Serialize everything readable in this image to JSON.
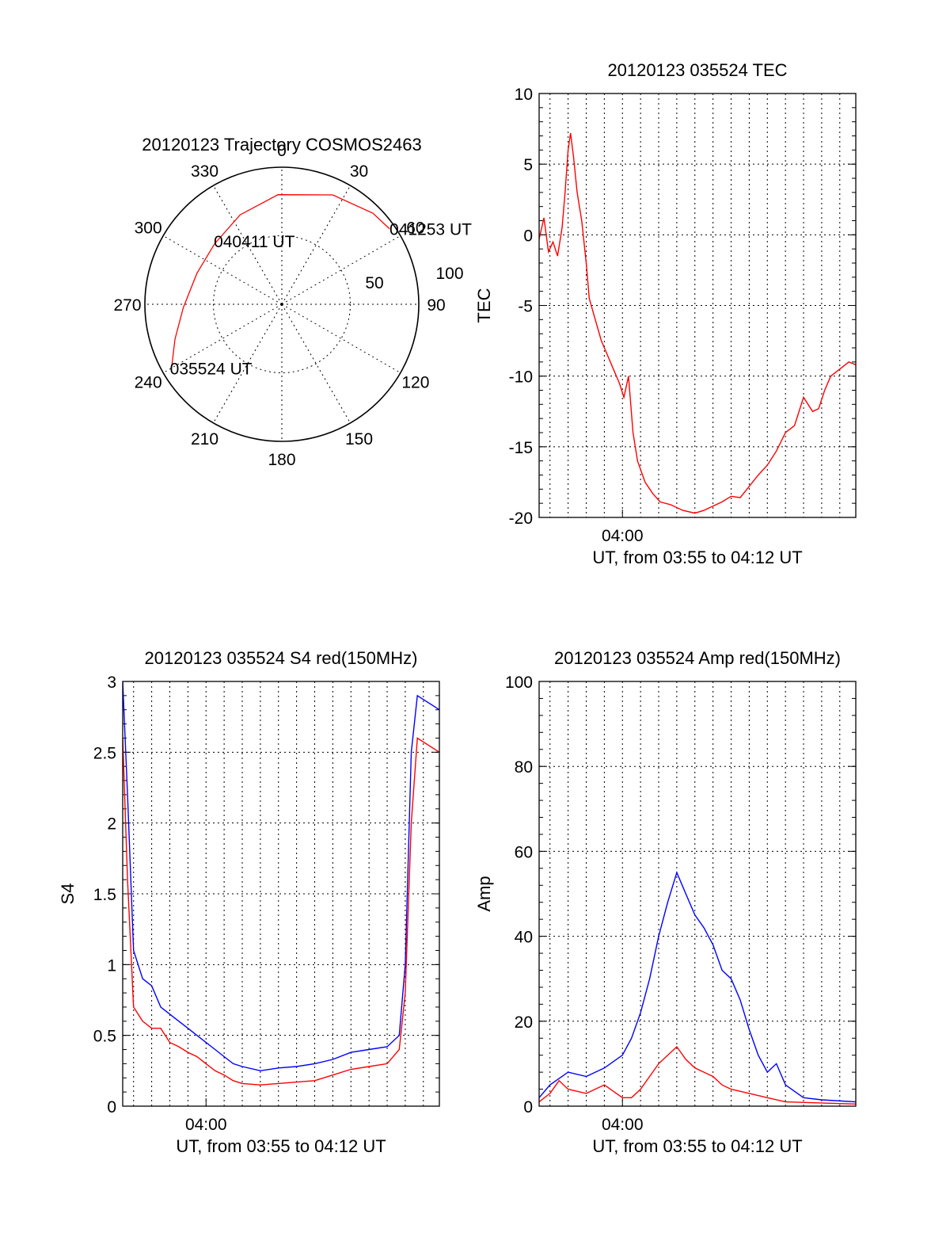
{
  "colors": {
    "red": "#ff0000",
    "blue": "#0000ff",
    "axis": "#000000"
  },
  "chart_data": [
    {
      "id": "polar",
      "type": "polar",
      "title": "20120123 Trajectory COSMOS2463",
      "azimuth_labels": [
        "0",
        "30",
        "60",
        "90",
        "120",
        "150",
        "180",
        "210",
        "240",
        "270",
        "300",
        "330"
      ],
      "radial_labels": [
        "50",
        "100"
      ],
      "rlim": [
        0,
        100
      ],
      "series": [
        {
          "color": "red",
          "points": [
            {
              "az": 240,
              "r": 93
            },
            {
              "az": 252,
              "r": 82
            },
            {
              "az": 268,
              "r": 72
            },
            {
              "az": 290,
              "r": 66
            },
            {
              "az": 312,
              "r": 66
            },
            {
              "az": 335,
              "r": 72
            },
            {
              "az": 358,
              "r": 80
            },
            {
              "az": 25,
              "r": 88
            },
            {
              "az": 45,
              "r": 94
            },
            {
              "az": 55,
              "r": 96
            }
          ]
        }
      ],
      "annotations": [
        {
          "text": "041253 UT",
          "az": 55,
          "r": 96
        },
        {
          "text": "040411 UT",
          "az": 338,
          "r": 40
        },
        {
          "text": "035524 UT",
          "az": 240,
          "r": 93
        }
      ]
    },
    {
      "id": "tec",
      "type": "line",
      "title": "20120123 035524 TEC",
      "xlabel": "UT, from 03:55 to 04:12 UT",
      "ylabel": "TEC",
      "xlim": [
        "03:55:24",
        "04:12:53"
      ],
      "x_ticks": [
        "04:00"
      ],
      "ylim": [
        -20,
        10
      ],
      "y_ticks": [
        -20,
        -15,
        -10,
        -5,
        0,
        5,
        10
      ],
      "grid": true,
      "series": [
        {
          "color": "red",
          "points": [
            [
              "03:55:24",
              -0.3
            ],
            [
              "03:55:40",
              1.2
            ],
            [
              "03:55:55",
              -1.2
            ],
            [
              "03:56:10",
              -0.5
            ],
            [
              "03:56:25",
              -1.5
            ],
            [
              "03:56:40",
              0.5
            ],
            [
              "03:56:50",
              3.0
            ],
            [
              "03:57:00",
              6.0
            ],
            [
              "03:57:08",
              7.2
            ],
            [
              "03:57:18",
              5.5
            ],
            [
              "03:57:30",
              3.0
            ],
            [
              "03:57:45",
              1.0
            ],
            [
              "03:58:00",
              -2.0
            ],
            [
              "03:58:10",
              -4.5
            ],
            [
              "03:58:30",
              -6.0
            ],
            [
              "03:58:50",
              -7.5
            ],
            [
              "03:59:10",
              -8.5
            ],
            [
              "03:59:30",
              -9.5
            ],
            [
              "03:59:50",
              -10.5
            ],
            [
              "04:00:05",
              -11.5
            ],
            [
              "04:00:20",
              -10.0
            ],
            [
              "04:00:35",
              -14.0
            ],
            [
              "04:00:50",
              -16.0
            ],
            [
              "04:01:15",
              -17.5
            ],
            [
              "04:01:40",
              -18.3
            ],
            [
              "04:02:05",
              -18.9
            ],
            [
              "04:02:40",
              -19.1
            ],
            [
              "04:03:20",
              -19.5
            ],
            [
              "04:04:00",
              -19.7
            ],
            [
              "04:04:30",
              -19.5
            ],
            [
              "04:05:00",
              -19.2
            ],
            [
              "04:05:30",
              -18.9
            ],
            [
              "04:06:00",
              -18.5
            ],
            [
              "04:06:30",
              -18.6
            ],
            [
              "04:07:00",
              -17.8
            ],
            [
              "04:07:30",
              -17.0
            ],
            [
              "04:08:00",
              -16.3
            ],
            [
              "04:08:30",
              -15.3
            ],
            [
              "04:09:00",
              -14.0
            ],
            [
              "04:09:30",
              -13.5
            ],
            [
              "04:10:00",
              -11.5
            ],
            [
              "04:10:30",
              -12.5
            ],
            [
              "04:10:50",
              -12.3
            ],
            [
              "04:11:10",
              -11.0
            ],
            [
              "04:11:30",
              -10.0
            ],
            [
              "04:12:00",
              -9.5
            ],
            [
              "04:12:30",
              -9.0
            ],
            [
              "04:12:53",
              -9.2
            ]
          ]
        }
      ]
    },
    {
      "id": "s4",
      "type": "line",
      "title": "20120123 035524 S4 red(150MHz)",
      "xlabel": "UT, from 03:55 to 04:12 UT",
      "ylabel": "S4",
      "xlim": [
        "03:55:24",
        "04:12:53"
      ],
      "x_ticks": [
        "04:00"
      ],
      "ylim": [
        0,
        3
      ],
      "y_ticks": [
        0,
        0.5,
        1,
        1.5,
        2,
        2.5,
        3
      ],
      "y_tick_labels": [
        "0",
        "0.5",
        "1",
        "1.5",
        "2",
        "2.5",
        "3"
      ],
      "grid": true,
      "series": [
        {
          "color": "blue",
          "points": [
            [
              "03:55:24",
              3.0
            ],
            [
              "03:55:40",
              2.2
            ],
            [
              "03:56:00",
              1.1
            ],
            [
              "03:56:30",
              0.9
            ],
            [
              "03:57:00",
              0.85
            ],
            [
              "03:57:30",
              0.7
            ],
            [
              "03:58:00",
              0.65
            ],
            [
              "03:58:30",
              0.6
            ],
            [
              "03:59:00",
              0.55
            ],
            [
              "03:59:30",
              0.5
            ],
            [
              "04:00:00",
              0.45
            ],
            [
              "04:00:30",
              0.4
            ],
            [
              "04:01:00",
              0.35
            ],
            [
              "04:01:30",
              0.3
            ],
            [
              "04:02:00",
              0.28
            ],
            [
              "04:03:00",
              0.25
            ],
            [
              "04:04:00",
              0.27
            ],
            [
              "04:05:00",
              0.28
            ],
            [
              "04:06:00",
              0.3
            ],
            [
              "04:07:00",
              0.33
            ],
            [
              "04:08:00",
              0.38
            ],
            [
              "04:09:00",
              0.4
            ],
            [
              "04:10:00",
              0.42
            ],
            [
              "04:10:40",
              0.5
            ],
            [
              "04:11:00",
              1.0
            ],
            [
              "04:11:20",
              2.5
            ],
            [
              "04:11:40",
              2.9
            ],
            [
              "04:12:53",
              2.8
            ]
          ]
        },
        {
          "color": "red",
          "points": [
            [
              "03:55:24",
              2.6
            ],
            [
              "03:55:40",
              1.6
            ],
            [
              "03:56:00",
              0.7
            ],
            [
              "03:56:30",
              0.6
            ],
            [
              "03:57:00",
              0.55
            ],
            [
              "03:57:30",
              0.55
            ],
            [
              "03:58:00",
              0.45
            ],
            [
              "03:58:30",
              0.42
            ],
            [
              "03:59:00",
              0.38
            ],
            [
              "03:59:30",
              0.35
            ],
            [
              "04:00:00",
              0.3
            ],
            [
              "04:00:30",
              0.25
            ],
            [
              "04:01:00",
              0.22
            ],
            [
              "04:01:30",
              0.18
            ],
            [
              "04:02:00",
              0.16
            ],
            [
              "04:03:00",
              0.15
            ],
            [
              "04:04:00",
              0.16
            ],
            [
              "04:05:00",
              0.17
            ],
            [
              "04:06:00",
              0.18
            ],
            [
              "04:07:00",
              0.22
            ],
            [
              "04:08:00",
              0.26
            ],
            [
              "04:09:00",
              0.28
            ],
            [
              "04:10:00",
              0.3
            ],
            [
              "04:10:40",
              0.4
            ],
            [
              "04:11:00",
              0.8
            ],
            [
              "04:11:20",
              2.0
            ],
            [
              "04:11:40",
              2.6
            ],
            [
              "04:12:53",
              2.5
            ]
          ]
        }
      ]
    },
    {
      "id": "amp",
      "type": "line",
      "title": "20120123 035524 Amp red(150MHz)",
      "xlabel": "UT, from 03:55 to 04:12 UT",
      "ylabel": "Amp",
      "xlim": [
        "03:55:24",
        "04:12:53"
      ],
      "x_ticks": [
        "04:00"
      ],
      "ylim": [
        0,
        100
      ],
      "y_ticks": [
        0,
        20,
        40,
        60,
        80,
        100
      ],
      "grid": true,
      "series": [
        {
          "color": "blue",
          "points": [
            [
              "03:55:24",
              2
            ],
            [
              "03:56:00",
              5
            ],
            [
              "03:57:00",
              8
            ],
            [
              "03:58:00",
              7
            ],
            [
              "03:59:00",
              9
            ],
            [
              "04:00:00",
              12
            ],
            [
              "04:00:30",
              16
            ],
            [
              "04:01:00",
              22
            ],
            [
              "04:01:30",
              30
            ],
            [
              "04:02:00",
              40
            ],
            [
              "04:02:30",
              48
            ],
            [
              "04:03:00",
              55
            ],
            [
              "04:03:30",
              50
            ],
            [
              "04:04:00",
              45
            ],
            [
              "04:04:30",
              42
            ],
            [
              "04:05:00",
              38
            ],
            [
              "04:05:30",
              32
            ],
            [
              "04:06:00",
              30
            ],
            [
              "04:06:30",
              25
            ],
            [
              "04:07:00",
              18
            ],
            [
              "04:07:30",
              12
            ],
            [
              "04:08:00",
              8
            ],
            [
              "04:08:30",
              10
            ],
            [
              "04:09:00",
              5
            ],
            [
              "04:10:00",
              2
            ],
            [
              "04:11:00",
              1.5
            ],
            [
              "04:12:53",
              1
            ]
          ]
        },
        {
          "color": "red",
          "points": [
            [
              "03:55:24",
              1
            ],
            [
              "03:56:00",
              3
            ],
            [
              "03:56:30",
              6
            ],
            [
              "03:57:00",
              4
            ],
            [
              "03:58:00",
              3
            ],
            [
              "03:59:00",
              5
            ],
            [
              "04:00:00",
              2
            ],
            [
              "04:00:30",
              2
            ],
            [
              "04:01:00",
              4
            ],
            [
              "04:01:30",
              7
            ],
            [
              "04:02:00",
              10
            ],
            [
              "04:02:30",
              12
            ],
            [
              "04:03:00",
              14
            ],
            [
              "04:03:30",
              11
            ],
            [
              "04:04:00",
              9
            ],
            [
              "04:04:30",
              8
            ],
            [
              "04:05:00",
              7
            ],
            [
              "04:05:30",
              5
            ],
            [
              "04:06:00",
              4
            ],
            [
              "04:07:00",
              3
            ],
            [
              "04:08:00",
              2
            ],
            [
              "04:09:00",
              1
            ],
            [
              "04:12:53",
              0.5
            ]
          ]
        }
      ]
    }
  ]
}
